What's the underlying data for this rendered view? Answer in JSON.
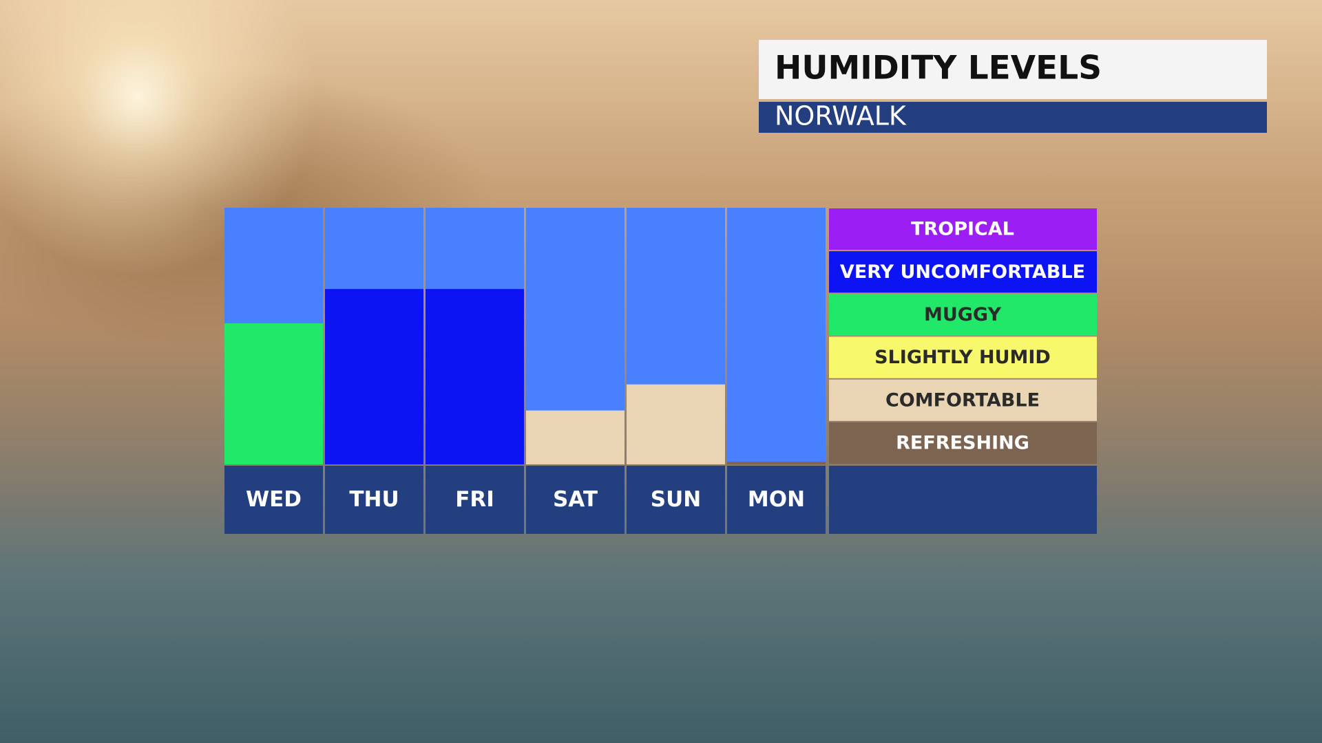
{
  "chart_data": {
    "type": "bar",
    "title": "HUMIDITY LEVELS",
    "subtitle": "NORWALK",
    "categories": [
      "WED",
      "THU",
      "FRI",
      "SAT",
      "SUN",
      "MON"
    ],
    "values": [
      3.3,
      4.1,
      4.1,
      1.26,
      1.87,
      0.06
    ],
    "ylim": [
      0,
      6
    ],
    "plot_background": "#4880fd",
    "levels": [
      {
        "name": "REFRESHING",
        "color": "#7c6450"
      },
      {
        "name": "COMFORTABLE",
        "color": "#e9d4b4"
      },
      {
        "name": "SLIGHTLY HUMID",
        "color": "#f8f86c"
      },
      {
        "name": "MUGGY",
        "color": "#22e86a"
      },
      {
        "name": "VERY UNCOMFORTABLE",
        "color": "#0c14f4"
      },
      {
        "name": "TROPICAL",
        "color": "#9b1ff5"
      }
    ]
  }
}
